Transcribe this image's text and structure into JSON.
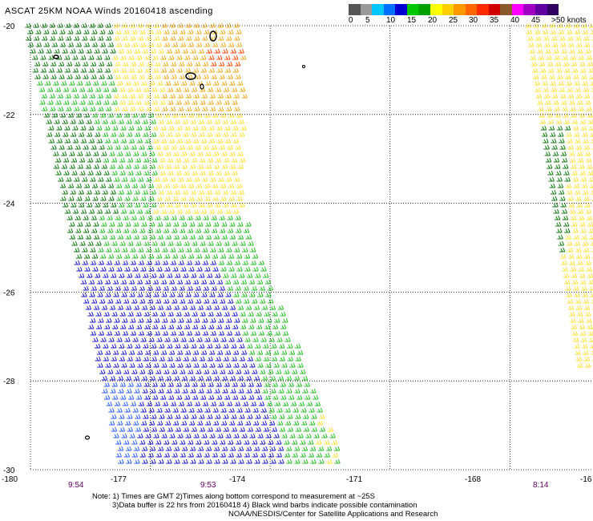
{
  "title": "ASCAT 25KM NOAA Winds 20160418 ascending",
  "legend": {
    "colors": [
      "#555555",
      "#9a9a9a",
      "#00c8ff",
      "#0070ff",
      "#0000d0",
      "#00c800",
      "#00a000",
      "#ffff00",
      "#ffd000",
      "#ff9900",
      "#ff6600",
      "#ff2a00",
      "#d00000",
      "#8b5a2b",
      "#ff00ff",
      "#a000c0",
      "#6000a0",
      "#300060"
    ],
    "labels": [
      "0",
      "5",
      "10",
      "15",
      "20",
      "25",
      "30",
      "35",
      "40",
      "45",
      ">50 knots"
    ]
  },
  "map": {
    "lat_labels": [
      "-20",
      "-22",
      "-24",
      "-26",
      "-28",
      "-30"
    ],
    "lon_labels": [
      "-180",
      "-177",
      "-174",
      "-171",
      "-168",
      "-16"
    ],
    "times": [
      "9:54",
      "9:53",
      "8:14"
    ]
  },
  "notes": [
    "Note: 1) Times are GMT 2)Times along bottom correspond to measurement at ~25S",
    "3)Data buffer is 22 hrs from 20160418 4) Black wind barbs indicate possible contamination",
    "NOAA/NESDIS/Center for Satellite Applications and Research"
  ],
  "speed_colors": {
    "blue": "#1a1acc",
    "lightblue": "#2a5cff",
    "green": "#1fbf1f",
    "darkgreen": "#0b7a0b",
    "yellow": "#ffe030",
    "orange": "#f0a818",
    "red": "#ff4400"
  }
}
